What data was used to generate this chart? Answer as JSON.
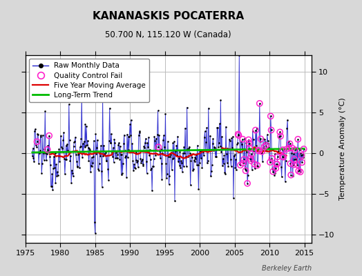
{
  "title": "KANANASKIS POCATERRA",
  "subtitle": "50.700 N, 115.120 W (Canada)",
  "ylabel": "Temperature Anomaly (°C)",
  "watermark": "Berkeley Earth",
  "xlim": [
    1975,
    2016
  ],
  "ylim": [
    -11,
    12
  ],
  "yticks": [
    -10,
    -5,
    0,
    5,
    10
  ],
  "xticks": [
    1975,
    1980,
    1985,
    1990,
    1995,
    2000,
    2005,
    2010,
    2015
  ],
  "bg_color": "#d8d8d8",
  "plot_bg_color": "#ffffff",
  "grid_color": "#bbbbbb",
  "raw_line_color": "#2222cc",
  "raw_dot_color": "#000000",
  "ma_color": "#dd0000",
  "trend_color": "#00bb00",
  "qc_color": "#ff22cc",
  "seed": 12345,
  "start_year": 1976,
  "end_year": 2014
}
